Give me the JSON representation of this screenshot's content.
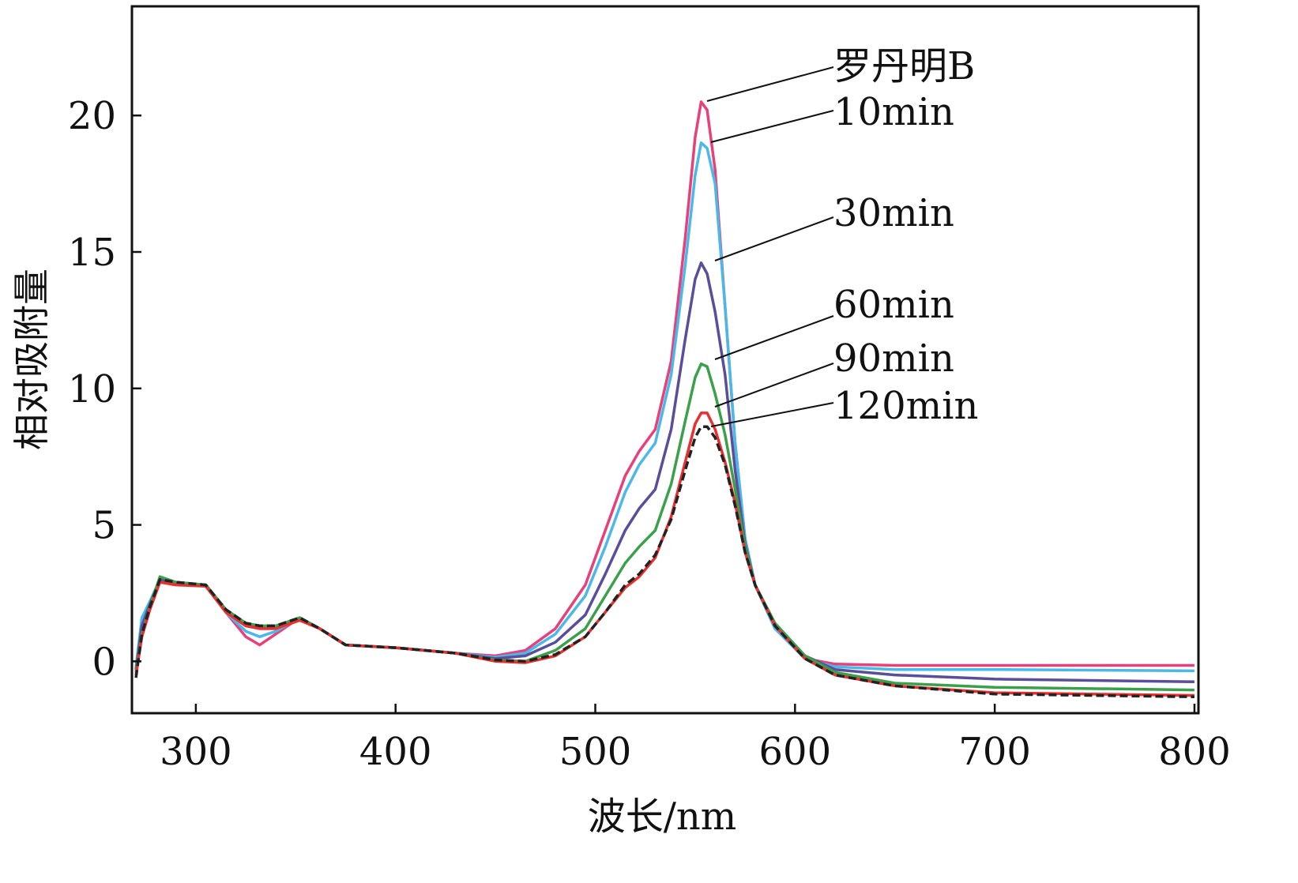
{
  "chart_data": {
    "type": "line",
    "title": "",
    "xlabel": "波长/nm",
    "ylabel": "相对吸附量",
    "xlim": [
      268,
      802
    ],
    "ylim": [
      -1.9,
      24
    ],
    "xticks": [
      300,
      400,
      500,
      600,
      700,
      800
    ],
    "yticks": [
      0,
      5,
      10,
      15,
      20
    ],
    "grid": false,
    "legend": "annotations with leader lines at the top right of the peak",
    "x": [
      270,
      273,
      277,
      282,
      290,
      305,
      315,
      325,
      332,
      340,
      352,
      362,
      375,
      400,
      430,
      450,
      465,
      480,
      495,
      505,
      515,
      522,
      530,
      538,
      545,
      550,
      553,
      556,
      560,
      565,
      570,
      575,
      580,
      590,
      605,
      620,
      650,
      700,
      800
    ],
    "series": [
      {
        "name": "罗丹明B",
        "color": "#e8407a",
        "dash": false,
        "values": [
          -0.3,
          1.2,
          2.0,
          3.0,
          2.85,
          2.8,
          1.8,
          0.9,
          0.6,
          1.0,
          1.6,
          1.2,
          0.6,
          0.5,
          0.3,
          0.2,
          0.4,
          1.2,
          2.8,
          4.8,
          6.8,
          7.7,
          8.5,
          11,
          15.5,
          19.2,
          20.5,
          20.2,
          18,
          13,
          8,
          4.5,
          2.8,
          1.2,
          0.1,
          -0.1,
          -0.15,
          -0.15,
          -0.15
        ]
      },
      {
        "name": "10min",
        "color": "#4ab8e8",
        "dash": false,
        "values": [
          -0.2,
          1.6,
          2.2,
          3.0,
          2.85,
          2.8,
          1.8,
          1.1,
          0.9,
          1.1,
          1.6,
          1.2,
          0.6,
          0.5,
          0.3,
          0.15,
          0.3,
          1.0,
          2.4,
          4.2,
          6.2,
          7.2,
          8.0,
          10.5,
          14.5,
          17.8,
          19,
          18.8,
          17.5,
          13,
          8,
          4.5,
          2.8,
          1.2,
          0.1,
          -0.2,
          -0.3,
          -0.3,
          -0.35
        ]
      },
      {
        "name": "30min",
        "color": "#5a4e9a",
        "dash": false,
        "values": [
          -0.3,
          1.3,
          2.1,
          3.0,
          2.9,
          2.8,
          1.9,
          1.3,
          1.2,
          1.2,
          1.6,
          1.2,
          0.6,
          0.5,
          0.3,
          0.1,
          0.2,
          0.7,
          1.7,
          3.2,
          4.8,
          5.6,
          6.3,
          8.5,
          11.8,
          14,
          14.6,
          14.2,
          12.8,
          10.5,
          7,
          4.3,
          2.8,
          1.3,
          0.2,
          -0.3,
          -0.5,
          -0.65,
          -0.75
        ]
      },
      {
        "name": "60min",
        "color": "#3aa04a",
        "dash": false,
        "values": [
          -0.4,
          1.0,
          2.0,
          3.1,
          2.9,
          2.8,
          1.9,
          1.4,
          1.3,
          1.3,
          1.6,
          1.2,
          0.6,
          0.5,
          0.3,
          0.05,
          0.0,
          0.4,
          1.2,
          2.4,
          3.6,
          4.2,
          4.8,
          6.5,
          8.8,
          10.4,
          10.9,
          10.8,
          9.8,
          8.3,
          6.3,
          4.2,
          2.8,
          1.4,
          0.2,
          -0.4,
          -0.8,
          -0.95,
          -1.05
        ]
      },
      {
        "name": "90min",
        "color": "#e83030",
        "dash": false,
        "values": [
          -0.5,
          0.9,
          1.9,
          2.9,
          2.8,
          2.75,
          1.8,
          1.3,
          1.2,
          1.2,
          1.5,
          1.2,
          0.6,
          0.5,
          0.3,
          0.0,
          -0.05,
          0.2,
          0.9,
          1.8,
          2.7,
          3.1,
          3.8,
          5.3,
          7.3,
          8.7,
          9.1,
          9.1,
          8.5,
          7.3,
          5.8,
          4.0,
          2.8,
          1.3,
          0.1,
          -0.5,
          -0.9,
          -1.15,
          -1.25
        ]
      },
      {
        "name": "120min",
        "color": "#222222",
        "dash": true,
        "values": [
          -0.6,
          1.0,
          2.0,
          3.0,
          2.9,
          2.8,
          1.9,
          1.4,
          1.3,
          1.3,
          1.6,
          1.2,
          0.6,
          0.5,
          0.3,
          0.05,
          0.0,
          0.25,
          0.9,
          1.8,
          2.8,
          3.2,
          3.9,
          5.2,
          7,
          8.2,
          8.6,
          8.6,
          8.2,
          7.2,
          5.7,
          4.0,
          2.8,
          1.3,
          0.1,
          -0.5,
          -0.9,
          -1.2,
          -1.3
        ]
      }
    ]
  }
}
